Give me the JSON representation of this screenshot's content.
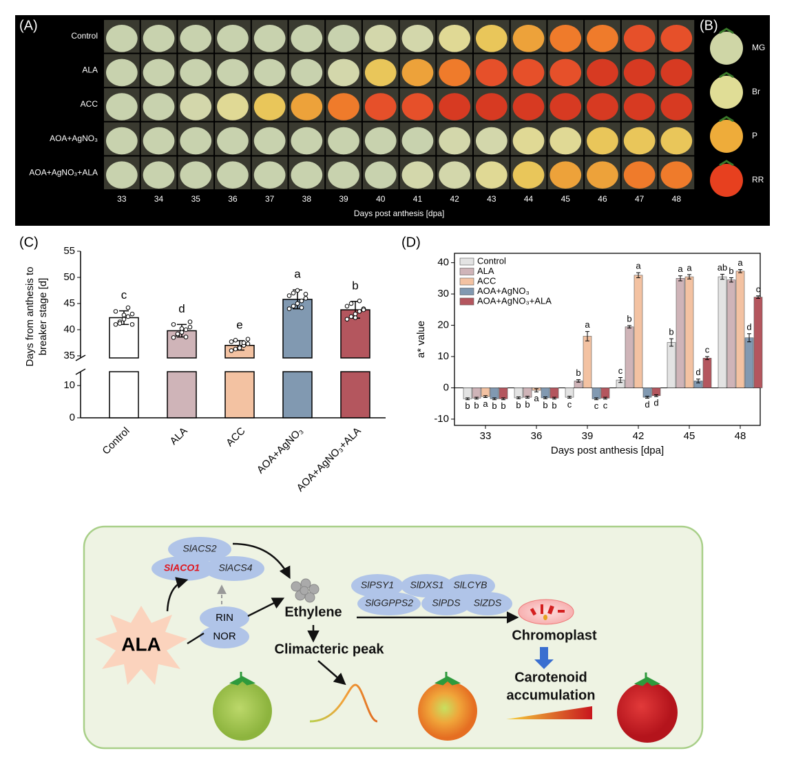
{
  "panel_a": {
    "label": "(A)",
    "rows": [
      "Control",
      "ALA",
      "ACC",
      "AOA+AgNO₃",
      "AOA+AgNO₃+ALA"
    ],
    "days": [
      "33",
      "34",
      "35",
      "36",
      "37",
      "38",
      "39",
      "40",
      "41",
      "42",
      "43",
      "44",
      "45",
      "46",
      "47",
      "48"
    ],
    "xlabel": "Days post anthesis [dpa]"
  },
  "panel_b": {
    "label": "(B)",
    "stages": [
      "MG",
      "Br",
      "P",
      "RR"
    ]
  },
  "chart_data": [
    {
      "type": "bar",
      "panel": "(C)",
      "ylabel": [
        "Days from anthesis to",
        "breaker stage [d]"
      ],
      "categories": [
        "Control",
        "ALA",
        "ACC",
        "AOA+AgNO₃",
        "AOA+AgNO₃+ALA"
      ],
      "values": [
        42.3,
        39.8,
        37.0,
        45.8,
        43.8
      ],
      "errors": [
        1.3,
        1.2,
        0.9,
        1.8,
        1.6
      ],
      "letters": [
        "c",
        "d",
        "e",
        "a",
        "b"
      ],
      "points": [
        [
          41,
          41.5,
          42,
          42.5,
          43,
          43.5,
          41.2,
          42.8,
          44.2,
          41
        ],
        [
          38.5,
          39,
          39.5,
          40,
          40.5,
          41,
          39.2,
          40.2,
          38.6,
          41.5
        ],
        [
          36,
          36.3,
          36.7,
          37,
          37.3,
          37.7,
          38,
          36.5,
          37.5,
          38.2
        ],
        [
          44,
          44.5,
          45,
          45.5,
          46,
          46.5,
          47,
          47.5,
          44.2,
          46.8
        ],
        [
          42,
          42.5,
          43,
          43.5,
          44,
          44.5,
          45,
          42.3,
          45.5,
          43.8
        ]
      ],
      "colors": [
        "#ffffff",
        "#cfb4b8",
        "#f3c2a2",
        "#8199b1",
        "#b4565e"
      ],
      "ylim": [
        0,
        14.3
      ],
      "ylim_upper": [
        34.6,
        55
      ],
      "yticks": [
        0,
        10,
        35,
        40,
        45,
        50,
        55
      ]
    },
    {
      "type": "grouped-bar",
      "panel": "(D)",
      "xlabel": "Days post anthesis [dpa]",
      "ylabel": "a* value",
      "categories": [
        "33",
        "36",
        "39",
        "42",
        "45",
        "48"
      ],
      "series": [
        {
          "name": "Control",
          "color": "#e3e3e3",
          "values": [
            -3.5,
            -3.2,
            -3.0,
            2.5,
            14.5,
            35.5
          ],
          "errors": [
            0.3,
            0.3,
            0.3,
            0.8,
            1.2,
            0.8
          ],
          "letters": [
            "b",
            "b",
            "c",
            "c",
            "b",
            "ab"
          ]
        },
        {
          "name": "ALA",
          "color": "#cfb4b8",
          "values": [
            -3.3,
            -3.0,
            2.2,
            19.5,
            35.0,
            34.5
          ],
          "errors": [
            0.3,
            0.3,
            0.4,
            0.4,
            0.8,
            0.7
          ],
          "letters": [
            "b",
            "b",
            "b",
            "b",
            "a",
            "b"
          ]
        },
        {
          "name": "ACC",
          "color": "#f3c2a2",
          "values": [
            -2.8,
            -0.8,
            16.5,
            36.0,
            35.5,
            37.3
          ],
          "errors": [
            0.3,
            0.5,
            1.5,
            0.8,
            0.7,
            0.5
          ],
          "letters": [
            "a",
            "a",
            "a",
            "a",
            "a",
            "a"
          ]
        },
        {
          "name": "AOA+AgNO₃",
          "color": "#8199b1",
          "values": [
            -3.5,
            -3.2,
            -3.5,
            -3.0,
            2.2,
            16.0
          ],
          "errors": [
            0.3,
            0.3,
            0.3,
            0.3,
            0.6,
            1.3
          ],
          "letters": [
            "b",
            "b",
            "c",
            "d",
            "d",
            "d"
          ]
        },
        {
          "name": "AOA+AgNO₃+ALA",
          "color": "#b4565e",
          "values": [
            -3.5,
            -3.3,
            -3.3,
            -2.5,
            9.5,
            29.0
          ],
          "errors": [
            0.3,
            0.3,
            0.3,
            0.3,
            0.5,
            0.4
          ],
          "letters": [
            "b",
            "b",
            "c",
            "d",
            "c",
            "c"
          ]
        }
      ],
      "ylim": [
        -12,
        43
      ],
      "yticks": [
        -10,
        0,
        10,
        20,
        30,
        40
      ],
      "legend": "top-left"
    }
  ],
  "diagram": {
    "ala": "ALA",
    "ethylene_genes": [
      "SlACS2",
      "SlACO1",
      "SlACS4"
    ],
    "regulators": [
      "RIN",
      "NOR"
    ],
    "ethylene": "Ethylene",
    "climacteric": "Climacteric peak",
    "carotenoid_genes": [
      "SlPSY1",
      "SlDXS1",
      "SlLCYB",
      "SlGGPPS2",
      "SlPDS",
      "SlZDS"
    ],
    "chromoplast": "Chromoplast",
    "carotenoid": [
      "Carotenoid",
      "accumulation"
    ]
  }
}
